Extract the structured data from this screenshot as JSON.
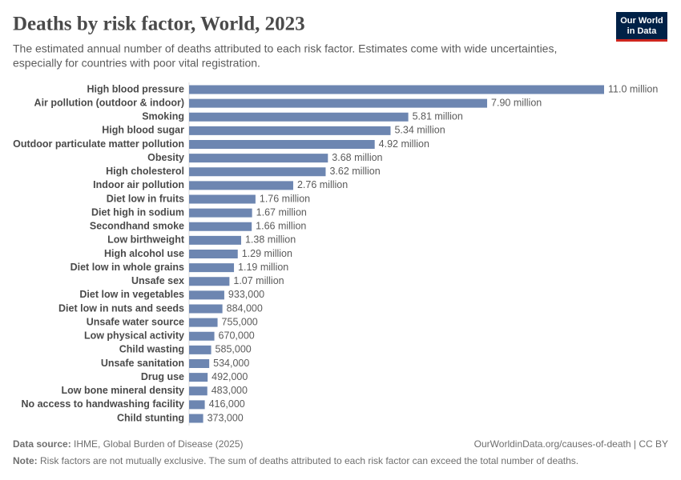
{
  "chart_data": {
    "type": "bar",
    "orientation": "horizontal",
    "title": "Deaths by risk factor, World, 2023",
    "subtitle": [
      "The estimated annual number of deaths attributed to each risk factor. Estimates come with wide uncertainties,",
      "especially for countries with poor vital registration."
    ],
    "categories": [
      "High blood pressure",
      "Air pollution (outdoor & indoor)",
      "Smoking",
      "High blood sugar",
      "Outdoor particulate matter pollution",
      "Obesity",
      "High cholesterol",
      "Indoor air pollution",
      "Diet low in fruits",
      "Diet high in sodium",
      "Secondhand smoke",
      "Low birthweight",
      "High alcohol use",
      "Diet low in whole grains",
      "Unsafe sex",
      "Diet low in vegetables",
      "Diet low in nuts and seeds",
      "Unsafe water source",
      "Low physical activity",
      "Child wasting",
      "Unsafe sanitation",
      "Drug use",
      "Low bone mineral density",
      "No access to handwashing facility",
      "Child stunting"
    ],
    "values": [
      11000000,
      7900000,
      5810000,
      5340000,
      4920000,
      3680000,
      3620000,
      2760000,
      1760000,
      1670000,
      1660000,
      1380000,
      1290000,
      1190000,
      1070000,
      933000,
      884000,
      755000,
      670000,
      585000,
      534000,
      492000,
      483000,
      416000,
      373000
    ],
    "value_labels": [
      "11.0 million",
      "7.90 million",
      "5.81 million",
      "5.34 million",
      "4.92 million",
      "3.68 million",
      "3.62 million",
      "2.76 million",
      "1.76 million",
      "1.67 million",
      "1.66 million",
      "1.38 million",
      "1.29 million",
      "1.19 million",
      "1.07 million",
      "933,000",
      "884,000",
      "755,000",
      "670,000",
      "585,000",
      "534,000",
      "492,000",
      "483,000",
      "416,000",
      "373,000"
    ],
    "color": "#6d86b1"
  },
  "logo": [
    "Our World",
    "in Data"
  ],
  "footer": {
    "source_label": "Data source:",
    "source": "IHME, Global Burden of Disease (2025)",
    "url": "OurWorldinData.org/causes-of-death | CC BY",
    "note_label": "Note:",
    "note": "Risk factors are not mutually exclusive. The sum of deaths attributed to each risk factor can exceed the total number of deaths."
  }
}
